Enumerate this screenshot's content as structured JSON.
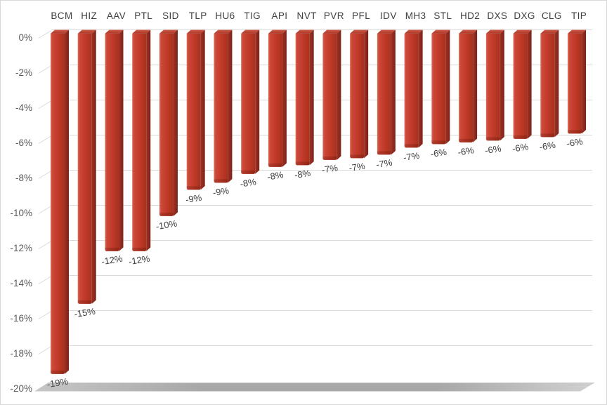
{
  "chart_data": {
    "type": "bar",
    "style": "3d-column",
    "title": "",
    "xlabel": "",
    "ylabel": "",
    "categories": [
      "BCM",
      "HIZ",
      "AAV",
      "PTL",
      "SID",
      "TLP",
      "HU6",
      "TIG",
      "API",
      "NVT",
      "PVR",
      "PFL",
      "IDV",
      "MH3",
      "STL",
      "HD2",
      "DXS",
      "DXG",
      "CLG",
      "TIP"
    ],
    "values": [
      -19.4,
      -15.4,
      -12.4,
      -12.4,
      -10.4,
      -8.9,
      -8.5,
      -8.0,
      -7.6,
      -7.5,
      -7.2,
      -7.1,
      -6.9,
      -6.5,
      -6.3,
      -6.2,
      -6.1,
      -6.0,
      -5.9,
      -5.7
    ],
    "data_labels": [
      "-19%",
      "-15%",
      "-12%",
      "-12%",
      "-10%",
      "-9%",
      "-9%",
      "-8%",
      "-8%",
      "-8%",
      "-7%",
      "-7%",
      "-7%",
      "-7%",
      "-6%",
      "-6%",
      "-6%",
      "-6%",
      "-6%",
      "-6%"
    ],
    "ylim": [
      -20,
      0
    ],
    "ytick_labels": [
      "0%",
      "-2%",
      "-4%",
      "-6%",
      "-8%",
      "-10%",
      "-12%",
      "-14%",
      "-16%",
      "-18%",
      "-20%"
    ],
    "grid": true,
    "legend": false,
    "colors": {
      "bar_front": "#c23a2b",
      "bar_front_highlight": "#dd6a58",
      "bar_front_dark": "#a63120",
      "bar_side": "#8c2a20",
      "bar_top": "#bc4334",
      "floor_gray": "#a8a8a8",
      "gridline": "#d9d9d9",
      "tick_text": "#595959",
      "category_text": "#404040",
      "data_label_text": "#404040",
      "background": "#ffffff",
      "border": "#d9d9d9"
    }
  }
}
